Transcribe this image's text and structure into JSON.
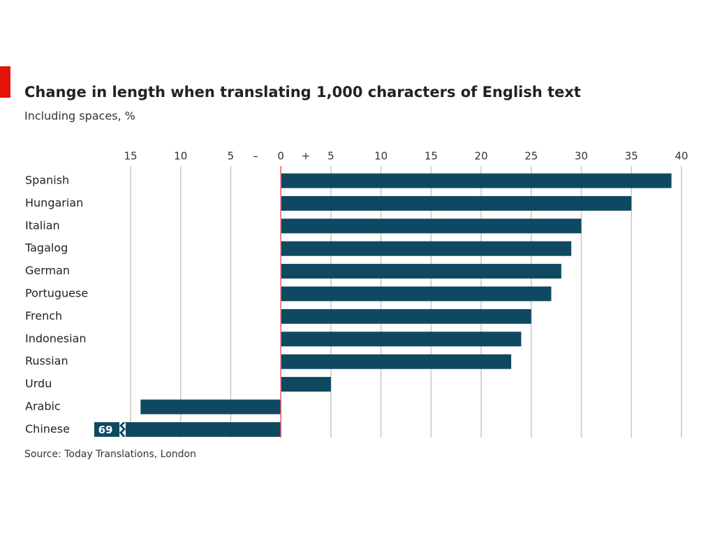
{
  "chart_data": {
    "type": "barh",
    "title": "Change in length when translating 1,000 characters of English text",
    "subtitle": "Including spaces, %",
    "source": "Source: Today Translations, London",
    "sign_labels": {
      "negative": "–",
      "positive": "+"
    },
    "categories": [
      "Spanish",
      "Hungarian",
      "Italian",
      "Tagalog",
      "German",
      "Portuguese",
      "French",
      "Indonesian",
      "Russian",
      "Urdu",
      "Arabic",
      "Chinese"
    ],
    "values": [
      39,
      35,
      30,
      29,
      28,
      27,
      25,
      24,
      23,
      5,
      -14,
      -69
    ],
    "value_labels": [
      null,
      null,
      null,
      null,
      null,
      null,
      null,
      null,
      null,
      null,
      null,
      "69"
    ],
    "color": "#0f4961",
    "zero_line_color": "#e8606a",
    "xlim": [
      -15,
      40
    ],
    "xticks": [
      {
        "value": -15,
        "label": "15"
      },
      {
        "value": -10,
        "label": "10"
      },
      {
        "value": -5,
        "label": "5"
      },
      0,
      5,
      10,
      15,
      20,
      25,
      30,
      35,
      40
    ],
    "grid": true
  }
}
